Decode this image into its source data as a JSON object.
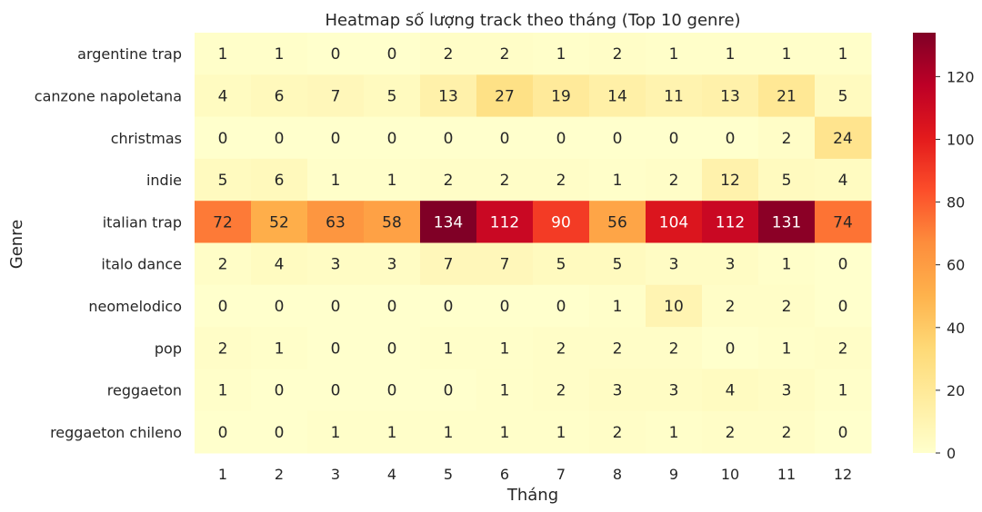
{
  "chart_data": {
    "type": "heatmap",
    "title": "Heatmap số lượng track theo tháng (Top 10 genre)",
    "xlabel": "Tháng",
    "ylabel": "Genre",
    "x_categories": [
      "1",
      "2",
      "3",
      "4",
      "5",
      "6",
      "7",
      "8",
      "9",
      "10",
      "11",
      "12"
    ],
    "y_categories": [
      "argentine trap",
      "canzone napoletana",
      "christmas",
      "indie",
      "italian trap",
      "italo dance",
      "neomelodico",
      "pop",
      "reggaeton",
      "reggaeton chileno"
    ],
    "values": [
      [
        1,
        1,
        0,
        0,
        2,
        2,
        1,
        2,
        1,
        1,
        1,
        1
      ],
      [
        4,
        6,
        7,
        5,
        13,
        27,
        19,
        14,
        11,
        13,
        21,
        5
      ],
      [
        0,
        0,
        0,
        0,
        0,
        0,
        0,
        0,
        0,
        0,
        2,
        24
      ],
      [
        5,
        6,
        1,
        1,
        2,
        2,
        2,
        1,
        2,
        12,
        5,
        4
      ],
      [
        72,
        52,
        63,
        58,
        134,
        112,
        90,
        56,
        104,
        112,
        131,
        74
      ],
      [
        2,
        4,
        3,
        3,
        7,
        7,
        5,
        5,
        3,
        3,
        1,
        0
      ],
      [
        0,
        0,
        0,
        0,
        0,
        0,
        0,
        1,
        10,
        2,
        2,
        0
      ],
      [
        2,
        1,
        0,
        0,
        1,
        1,
        2,
        2,
        2,
        0,
        1,
        2
      ],
      [
        1,
        0,
        0,
        0,
        0,
        1,
        2,
        3,
        3,
        4,
        3,
        1
      ],
      [
        0,
        0,
        1,
        1,
        1,
        1,
        1,
        2,
        1,
        2,
        2,
        0
      ]
    ],
    "colormap": "YlOrRd",
    "colorbar": {
      "min": 0,
      "max": 134,
      "ticks": [
        0,
        20,
        40,
        60,
        80,
        100,
        120
      ]
    },
    "grid": false,
    "annotated": true
  }
}
